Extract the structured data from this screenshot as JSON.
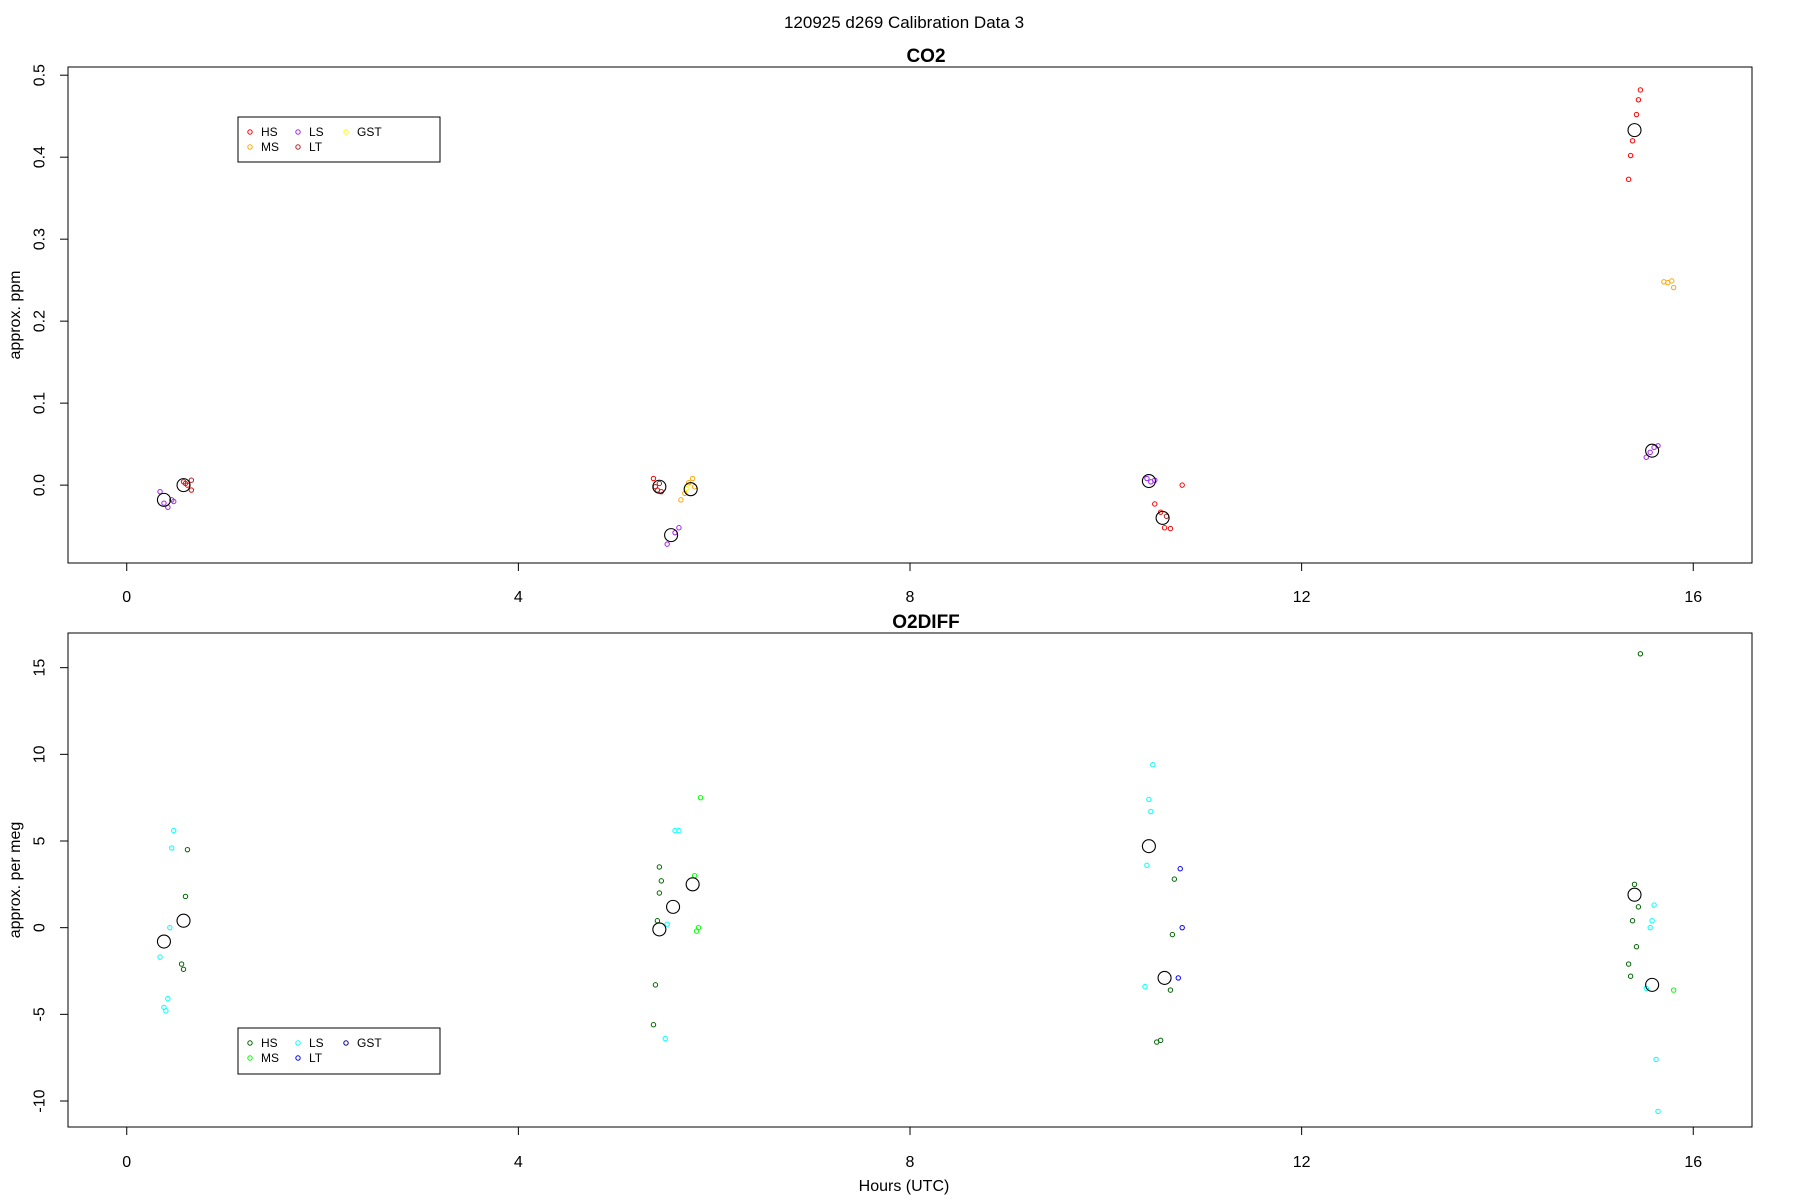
{
  "figure": {
    "title": "120925   d269   Calibration Data 3"
  },
  "chart_data": [
    {
      "type": "scatter",
      "title": "CO2",
      "xlabel": "",
      "ylabel": "approx. ppm",
      "xlim": [
        -0.6,
        16.6
      ],
      "ylim": [
        -0.095,
        0.51
      ],
      "x_ticks": [
        0,
        4,
        8,
        12,
        16
      ],
      "x_tick_labels": [
        "0",
        "4",
        "8",
        "12",
        "16"
      ],
      "y_ticks": [
        0.0,
        0.1,
        0.2,
        0.3,
        0.4,
        0.5
      ],
      "y_tick_labels": [
        "0.0",
        "0.1",
        "0.2",
        "0.3",
        "0.4",
        "0.5"
      ],
      "grid": false,
      "legend": {
        "placement": "top-left",
        "entries": [
          {
            "label": "HS",
            "color": "#ff0000"
          },
          {
            "label": "MS",
            "color": "#ffa500"
          },
          {
            "label": "LS",
            "color": "#a020f0"
          },
          {
            "label": "LT",
            "color": "#b22222"
          },
          {
            "label": "GST",
            "color": "#ffff00"
          }
        ]
      },
      "series": [
        {
          "name": "HS",
          "color": "#ff0000",
          "points": [
            [
              0.58,
              0.004
            ],
            [
              0.62,
              0.0
            ],
            [
              0.66,
              -0.006
            ],
            [
              5.38,
              0.008
            ],
            [
              5.42,
              -0.006
            ],
            [
              5.46,
              -0.008
            ],
            [
              10.5,
              -0.023
            ],
            [
              10.56,
              -0.033
            ],
            [
              10.6,
              -0.052
            ],
            [
              10.66,
              -0.053
            ],
            [
              10.78,
              0.0
            ],
            [
              15.34,
              0.373
            ],
            [
              15.36,
              0.402
            ],
            [
              15.38,
              0.42
            ],
            [
              15.42,
              0.452
            ],
            [
              15.44,
              0.47
            ],
            [
              15.46,
              0.482
            ]
          ]
        },
        {
          "name": "MS",
          "color": "#ffa500",
          "points": [
            [
              5.66,
              -0.018
            ],
            [
              5.7,
              -0.01
            ],
            [
              5.74,
              0.003
            ],
            [
              5.78,
              0.008
            ],
            [
              5.8,
              -0.002
            ],
            [
              15.7,
              0.248
            ],
            [
              15.74,
              0.247
            ],
            [
              15.78,
              0.249
            ],
            [
              15.8,
              0.241
            ]
          ]
        },
        {
          "name": "LS",
          "color": "#a020f0",
          "points": [
            [
              0.34,
              -0.008
            ],
            [
              0.38,
              -0.022
            ],
            [
              0.42,
              -0.027
            ],
            [
              0.46,
              -0.018
            ],
            [
              0.48,
              -0.02
            ],
            [
              5.52,
              -0.072
            ],
            [
              5.6,
              -0.058
            ],
            [
              5.64,
              -0.052
            ],
            [
              10.42,
              0.008
            ],
            [
              10.46,
              0.004
            ],
            [
              10.5,
              0.006
            ],
            [
              15.52,
              0.034
            ],
            [
              15.56,
              0.04
            ],
            [
              15.6,
              0.046
            ],
            [
              15.64,
              0.048
            ]
          ]
        },
        {
          "name": "LT",
          "color": "#b22222",
          "points": [
            [
              0.6,
              0.002
            ],
            [
              0.66,
              0.006
            ],
            [
              5.4,
              -0.002
            ],
            [
              5.44,
              0.002
            ],
            [
              10.62,
              -0.038
            ]
          ]
        },
        {
          "name": "GST",
          "color": "#ffff00",
          "points": [
            [
              5.72,
              -0.004
            ]
          ]
        },
        {
          "name": "",
          "color": "#000000",
          "role": "mean",
          "points": [
            [
              0.38,
              -0.018
            ],
            [
              0.58,
              0.0
            ],
            [
              5.44,
              -0.002
            ],
            [
              5.56,
              -0.061
            ],
            [
              5.76,
              -0.005
            ],
            [
              10.44,
              0.005
            ],
            [
              10.58,
              -0.04
            ],
            [
              15.4,
              0.433
            ],
            [
              15.58,
              0.042
            ]
          ]
        }
      ]
    },
    {
      "type": "scatter",
      "title": "O2DIFF",
      "xlabel": "Hours (UTC)",
      "ylabel": "approx. per meg",
      "xlim": [
        -0.6,
        16.6
      ],
      "ylim": [
        -11.5,
        17.0
      ],
      "x_ticks": [
        0,
        4,
        8,
        12,
        16
      ],
      "x_tick_labels": [
        "0",
        "4",
        "8",
        "12",
        "16"
      ],
      "y_ticks": [
        -10,
        -5,
        0,
        5,
        10,
        15
      ],
      "y_tick_labels": [
        "-10",
        "-5",
        "0",
        "5",
        "10",
        "15"
      ],
      "grid": false,
      "legend": {
        "placement": "bottom-left",
        "entries": [
          {
            "label": "HS",
            "color": "#006400"
          },
          {
            "label": "MS",
            "color": "#00ff00"
          },
          {
            "label": "LS",
            "color": "#00ffff"
          },
          {
            "label": "LT",
            "color": "#0000ff"
          },
          {
            "label": "GST",
            "color": "#00008b"
          }
        ]
      },
      "series": [
        {
          "name": "HS",
          "color": "#006400",
          "points": [
            [
              0.56,
              -2.1
            ],
            [
              0.58,
              -2.4
            ],
            [
              0.6,
              1.8
            ],
            [
              0.62,
              4.5
            ],
            [
              5.38,
              -5.6
            ],
            [
              5.4,
              -3.3
            ],
            [
              5.44,
              2.0
            ],
            [
              5.46,
              2.7
            ],
            [
              5.44,
              3.5
            ],
            [
              5.42,
              0.4
            ],
            [
              10.52,
              -6.6
            ],
            [
              10.56,
              -6.5
            ],
            [
              10.66,
              -3.6
            ],
            [
              10.7,
              2.8
            ],
            [
              10.68,
              -0.4
            ],
            [
              15.34,
              -2.1
            ],
            [
              15.36,
              -2.8
            ],
            [
              15.38,
              0.4
            ],
            [
              15.4,
              2.5
            ],
            [
              15.42,
              -1.1
            ],
            [
              15.44,
              1.2
            ],
            [
              15.46,
              15.8
            ]
          ]
        },
        {
          "name": "MS",
          "color": "#00ff00",
          "points": [
            [
              5.8,
              3.0
            ],
            [
              5.82,
              -0.2
            ],
            [
              5.84,
              0.0
            ],
            [
              5.86,
              7.5
            ],
            [
              15.8,
              -3.6
            ]
          ]
        },
        {
          "name": "LS",
          "color": "#00ffff",
          "points": [
            [
              0.34,
              -1.7
            ],
            [
              0.38,
              -4.6
            ],
            [
              0.4,
              -4.8
            ],
            [
              0.42,
              -4.1
            ],
            [
              0.44,
              0.0
            ],
            [
              0.46,
              4.6
            ],
            [
              0.48,
              5.6
            ],
            [
              5.5,
              -6.4
            ],
            [
              5.52,
              0.2
            ],
            [
              5.6,
              5.6
            ],
            [
              5.64,
              5.6
            ],
            [
              10.4,
              -3.4
            ],
            [
              10.42,
              3.6
            ],
            [
              10.44,
              7.4
            ],
            [
              10.46,
              6.7
            ],
            [
              10.48,
              9.4
            ],
            [
              15.52,
              -3.5
            ],
            [
              15.56,
              0.0
            ],
            [
              15.58,
              0.4
            ],
            [
              15.6,
              1.3
            ],
            [
              15.62,
              -7.6
            ],
            [
              15.64,
              -10.6
            ]
          ]
        },
        {
          "name": "LT",
          "color": "#0000ff",
          "points": [
            [
              10.76,
              3.4
            ],
            [
              10.78,
              0.0
            ],
            [
              10.74,
              -2.9
            ]
          ]
        },
        {
          "name": "GST",
          "color": "#00008b",
          "points": []
        },
        {
          "name": "",
          "color": "#000000",
          "role": "mean",
          "points": [
            [
              0.38,
              -0.8
            ],
            [
              0.58,
              0.4
            ],
            [
              5.44,
              -0.1
            ],
            [
              5.58,
              1.2
            ],
            [
              5.78,
              2.5
            ],
            [
              10.44,
              4.7
            ],
            [
              10.6,
              -2.9
            ],
            [
              15.4,
              1.9
            ],
            [
              15.58,
              -3.3
            ]
          ]
        }
      ]
    }
  ]
}
